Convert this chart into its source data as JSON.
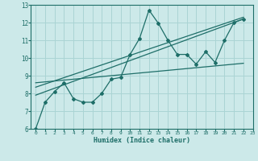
{
  "title": "",
  "xlabel": "Humidex (Indice chaleur)",
  "xlim": [
    -0.5,
    23
  ],
  "ylim": [
    6,
    13
  ],
  "xticks": [
    0,
    1,
    2,
    3,
    4,
    5,
    6,
    7,
    8,
    9,
    10,
    11,
    12,
    13,
    14,
    15,
    16,
    17,
    18,
    19,
    20,
    21,
    22,
    23
  ],
  "yticks": [
    6,
    7,
    8,
    9,
    10,
    11,
    12,
    13
  ],
  "bg_color": "#cce9e9",
  "grid_color": "#aad4d4",
  "line_color": "#1e6e68",
  "line1_x": [
    0,
    1,
    2,
    3,
    4,
    5,
    6,
    7,
    8,
    9,
    10,
    11,
    12,
    13,
    14,
    15,
    16,
    17,
    18,
    19,
    20,
    21,
    22
  ],
  "line1_y": [
    6.0,
    7.5,
    8.1,
    8.6,
    7.7,
    7.5,
    7.5,
    8.0,
    8.8,
    8.9,
    10.2,
    11.1,
    12.7,
    11.95,
    11.0,
    10.2,
    10.2,
    9.65,
    10.35,
    9.75,
    11.0,
    12.0,
    12.2
  ],
  "line2_x": [
    0,
    22
  ],
  "line2_y": [
    7.9,
    12.2
  ],
  "line3_x": [
    0,
    22
  ],
  "line3_y": [
    8.35,
    12.3
  ],
  "line4_x": [
    0,
    22
  ],
  "line4_y": [
    8.6,
    9.7
  ]
}
